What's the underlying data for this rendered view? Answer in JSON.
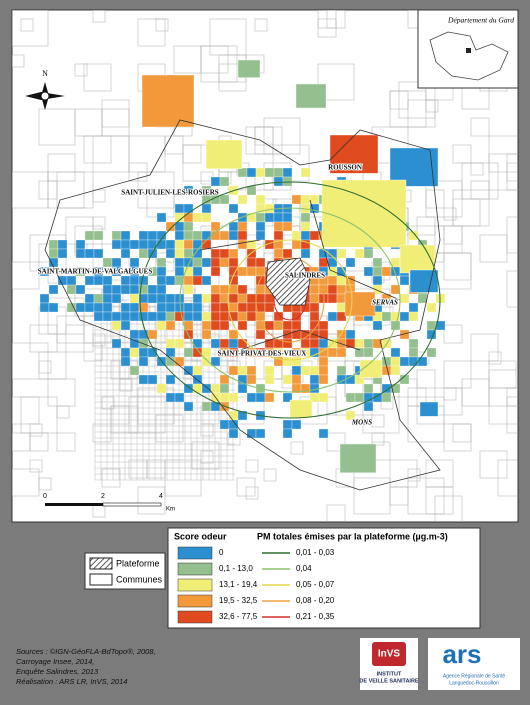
{
  "map": {
    "inset_label": "Département du Gard",
    "north": "N",
    "scale": {
      "ticks": [
        0,
        2,
        4
      ],
      "unit": "Km"
    },
    "communes": [
      "ROUSSON",
      "SAINT-JULIEN-LES-ROSIERS",
      "SAINT-MARTIN-DE-VALGALGUES",
      "SALINDRES",
      "SERVAS",
      "SAINT-PRIVAT-DES-VIEUX",
      "MONS"
    ]
  },
  "legend": {
    "layers": [
      "Plateforme",
      "Communes"
    ],
    "score": {
      "title": "Score odeur",
      "classes": [
        {
          "label": "0",
          "color": "#2b8fd0"
        },
        {
          "label": "0,1 - 13,0",
          "color": "#94bf8e"
        },
        {
          "label": "13,1 - 19,4",
          "color": "#f1ee78"
        },
        {
          "label": "19,5 - 32,5",
          "color": "#f29a3b"
        },
        {
          "label": "32,6 - 77,5",
          "color": "#df4a1f"
        }
      ]
    },
    "pm": {
      "title": "PM totales émises par la plateforme (µg.m-3)",
      "classes": [
        {
          "label": "0,01 - 0,03",
          "color": "#2f6e2f"
        },
        {
          "label": "0,04",
          "color": "#8cc36b"
        },
        {
          "label": "0,05 - 0,07",
          "color": "#e6d64a"
        },
        {
          "label": "0,08 - 0,20",
          "color": "#f0a040"
        },
        {
          "label": "0,21 - 0,35",
          "color": "#cf332a"
        }
      ]
    }
  },
  "sources": [
    "Sources : ©IGN-GéoFLA-BdTopo®, 2008,",
    "Carroyage Insee, 2014,",
    "Enquête Salindres, 2013",
    "Réalisation : ARS LR, InVS, 2014"
  ],
  "logos": {
    "invs": {
      "name": "InVS",
      "lines": [
        "INSTITUT",
        "DE VEILLE SANITAIRE"
      ]
    },
    "ars": {
      "name": "ars",
      "lines": [
        "Agence Régionale de Santé",
        "Languedoc-Roussillon"
      ]
    }
  }
}
